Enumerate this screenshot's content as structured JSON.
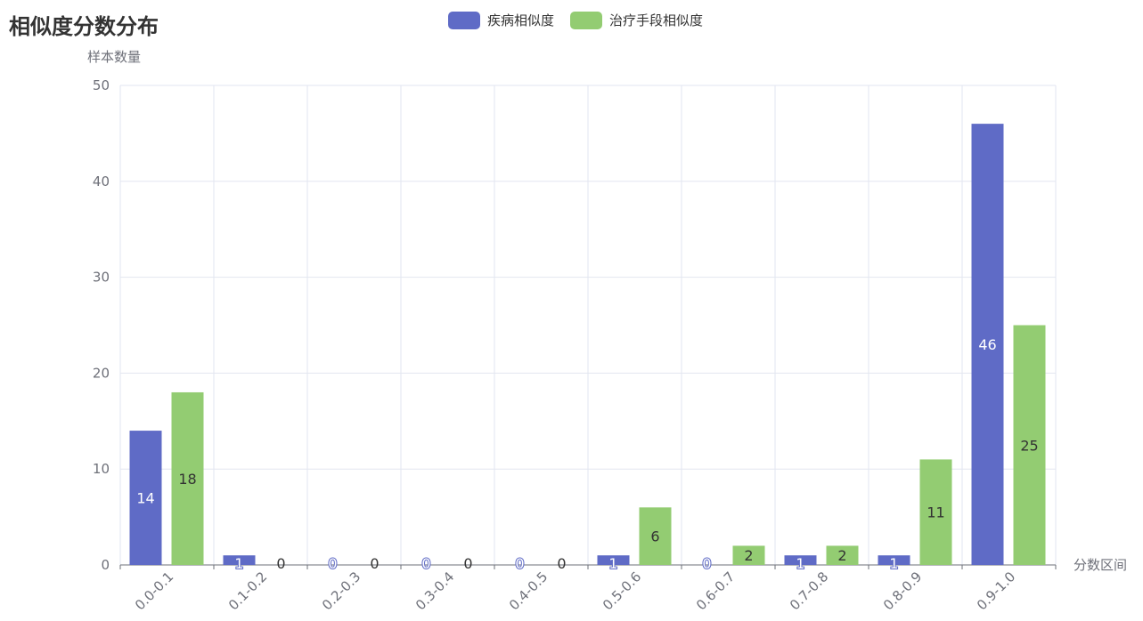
{
  "title": "相似度分数分布",
  "colors": {
    "series0": "#5f6bc6",
    "series1": "#93cc72",
    "grid": "#e2e6f0",
    "axis": "#6e7079"
  },
  "legend": [
    {
      "label": "疾病相似度",
      "color": "#5f6bc6"
    },
    {
      "label": "治疗手段相似度",
      "color": "#93cc72"
    }
  ],
  "chart_data": {
    "type": "bar",
    "title": "相似度分数分布",
    "xlabel": "分数区间",
    "ylabel": "样本数量",
    "ylim": [
      0,
      50
    ],
    "yticks": [
      0,
      10,
      20,
      30,
      40,
      50
    ],
    "categories": [
      "0.0-0.1",
      "0.1-0.2",
      "0.2-0.3",
      "0.3-0.4",
      "0.4-0.5",
      "0.5-0.6",
      "0.6-0.7",
      "0.7-0.8",
      "0.8-0.9",
      "0.9-1.0"
    ],
    "series": [
      {
        "name": "疾病相似度",
        "values": [
          14,
          1,
          0,
          0,
          0,
          1,
          0,
          1,
          1,
          46
        ]
      },
      {
        "name": "治疗手段相似度",
        "values": [
          18,
          0,
          0,
          0,
          0,
          6,
          2,
          2,
          11,
          25
        ]
      }
    ],
    "grid": true,
    "legend_position": "top-center"
  }
}
